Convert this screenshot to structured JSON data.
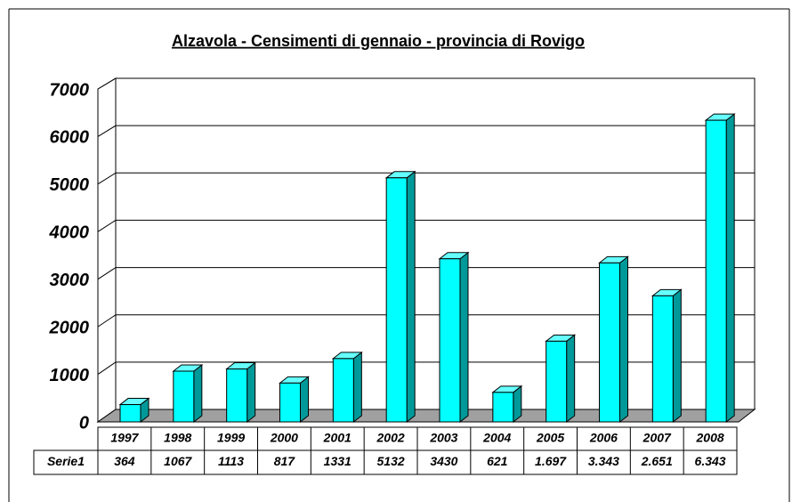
{
  "chart_data": {
    "type": "bar3d",
    "title": "Alzavola - Censimenti di gennaio - provincia di Rovigo",
    "categories": [
      "1997",
      "1998",
      "1999",
      "2000",
      "2001",
      "2002",
      "2003",
      "2004",
      "2005",
      "2006",
      "2007",
      "2008"
    ],
    "series": [
      {
        "name": "Serie1",
        "color": "#00ffff",
        "values": [
          364,
          1067,
          1113,
          817,
          1331,
          5132,
          3430,
          621,
          1697,
          3343,
          2651,
          6343
        ],
        "value_labels": [
          "364",
          "1067",
          "1113",
          "817",
          "1331",
          "5132",
          "3430",
          "621",
          "1.697",
          "3.343",
          "2.651",
          "6.343"
        ]
      }
    ],
    "ylim": [
      0,
      7000
    ],
    "yticks": [
      0,
      1000,
      2000,
      3000,
      4000,
      5000,
      6000,
      7000
    ],
    "grid": true
  }
}
